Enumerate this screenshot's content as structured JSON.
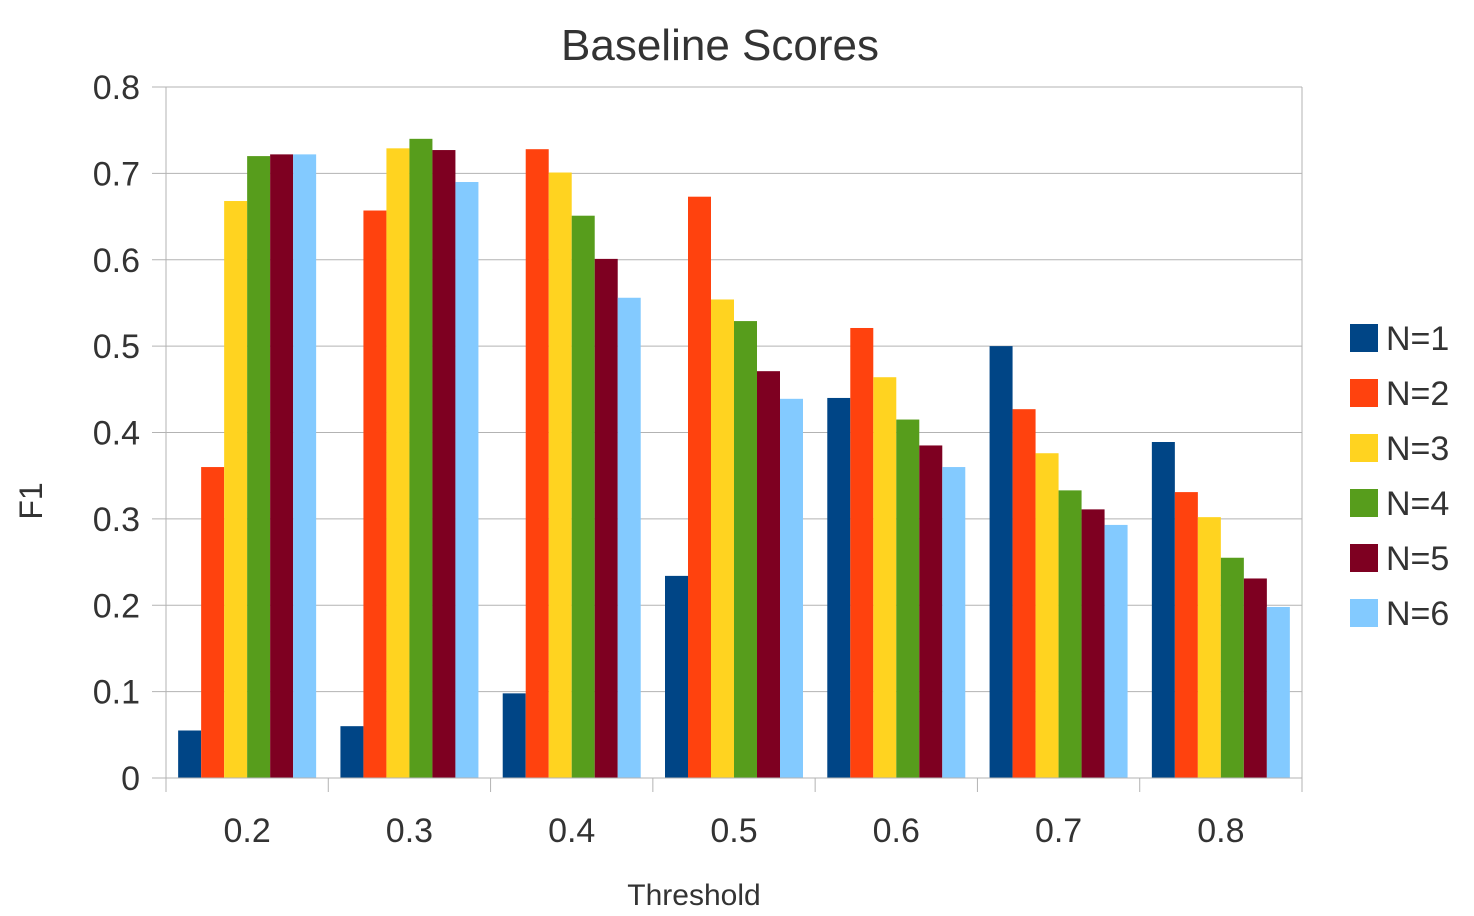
{
  "chart_data": {
    "type": "bar",
    "title": "Baseline Scores",
    "xlabel": "Threshold",
    "ylabel": "F1",
    "categories": [
      "0.2",
      "0.3",
      "0.4",
      "0.5",
      "0.6",
      "0.7",
      "0.8"
    ],
    "ylim": [
      0,
      0.8
    ],
    "yticks": [
      "0",
      "0.1",
      "0.2",
      "0.3",
      "0.4",
      "0.5",
      "0.6",
      "0.7",
      "0.8"
    ],
    "grid": true,
    "legend_position": "right",
    "series": [
      {
        "name": "N=1",
        "color": "#004586",
        "values": [
          0.055,
          0.06,
          0.098,
          0.234,
          0.44,
          0.5,
          0.389
        ]
      },
      {
        "name": "N=2",
        "color": "#ff420e",
        "values": [
          0.36,
          0.657,
          0.728,
          0.673,
          0.521,
          0.427,
          0.331
        ]
      },
      {
        "name": "N=3",
        "color": "#ffd320",
        "values": [
          0.668,
          0.729,
          0.701,
          0.554,
          0.464,
          0.376,
          0.302
        ]
      },
      {
        "name": "N=4",
        "color": "#579d1c",
        "values": [
          0.72,
          0.74,
          0.651,
          0.529,
          0.415,
          0.333,
          0.255
        ]
      },
      {
        "name": "N=5",
        "color": "#7e0021",
        "values": [
          0.722,
          0.727,
          0.601,
          0.471,
          0.385,
          0.311,
          0.231
        ]
      },
      {
        "name": "N=6",
        "color": "#83caff",
        "values": [
          0.722,
          0.69,
          0.556,
          0.439,
          0.36,
          0.293,
          0.198
        ]
      }
    ]
  }
}
